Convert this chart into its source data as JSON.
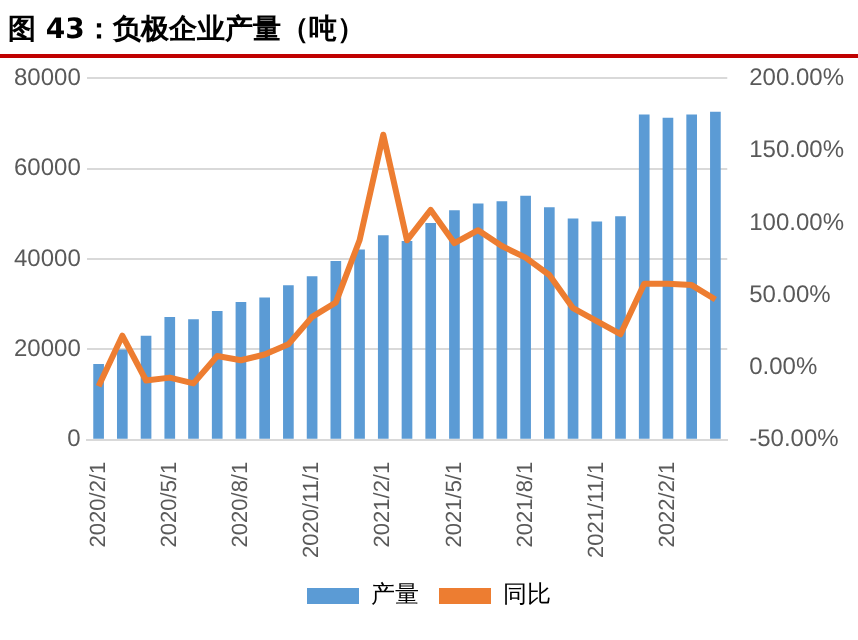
{
  "chart_data": {
    "type": "bar",
    "title": "图 43：负极企业产量（吨）",
    "categories": [
      "2020/2/1",
      null,
      null,
      "2020/5/1",
      null,
      null,
      "2020/8/1",
      null,
      null,
      "2020/11/1",
      null,
      null,
      "2021/2/1",
      null,
      null,
      "2021/5/1",
      null,
      null,
      "2021/8/1",
      null,
      null,
      "2021/11/1",
      null,
      null,
      "2022/2/1",
      null,
      null
    ],
    "series": [
      {
        "name": "产量",
        "color": "#5b9bd5",
        "values": [
          16800,
          20000,
          23000,
          27200,
          26700,
          28500,
          30500,
          31500,
          34200,
          36200,
          39600,
          42100,
          45300,
          44000,
          48000,
          50800,
          52300,
          52800,
          54000,
          51500,
          49000,
          48300,
          49500,
          72000,
          71300,
          72000,
          72600
        ]
      },
      {
        "name": "同比",
        "type": "line",
        "axis": "y2",
        "color": "#ed7d31",
        "values": [
          -13,
          22,
          -9,
          -7,
          -11,
          8,
          5,
          9,
          16,
          35,
          45,
          88,
          161,
          88,
          109,
          86,
          95,
          84,
          76,
          64,
          41,
          32,
          23,
          58,
          58,
          57,
          47
        ]
      }
    ],
    "ylim": [
      0,
      80000
    ],
    "yticks": [
      0,
      20000,
      40000,
      60000,
      80000
    ],
    "y2lim": [
      -50,
      200
    ],
    "y2ticks": [
      {
        "value": -50,
        "label": "-50.00%"
      },
      {
        "value": 0,
        "label": "0.00%"
      },
      {
        "value": 50,
        "label": "50.00%"
      },
      {
        "value": 100,
        "label": "100.00%"
      },
      {
        "value": 150,
        "label": "150.00%"
      },
      {
        "value": 200,
        "label": "200.00%"
      }
    ],
    "grid": "y",
    "legend": "bottom"
  }
}
